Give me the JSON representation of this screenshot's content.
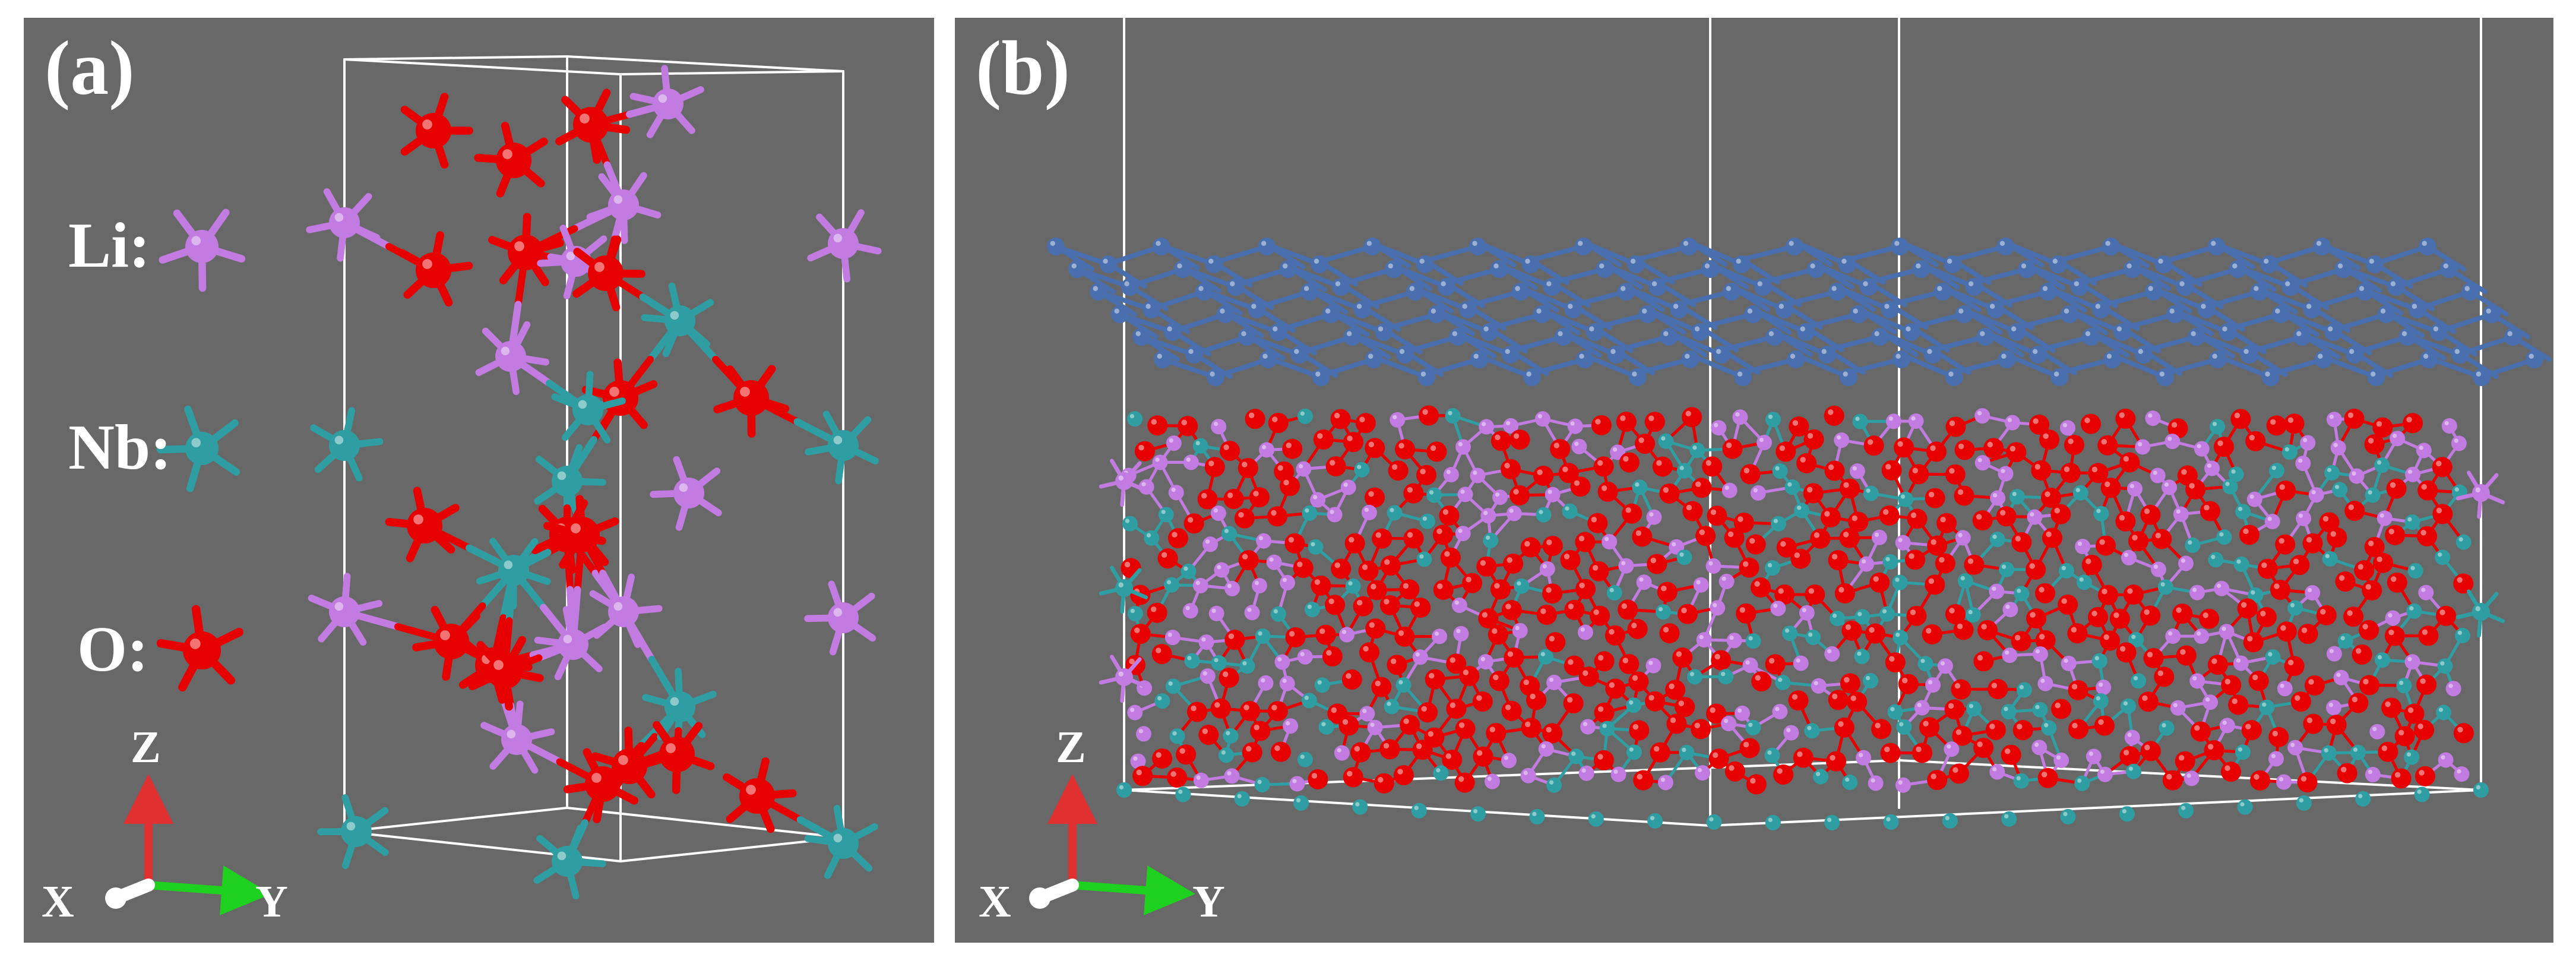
{
  "panel_a": {
    "label": "(a)",
    "legend": [
      {
        "symbol": "Li",
        "text": "Li:",
        "color": "#c27be0"
      },
      {
        "symbol": "Nb",
        "text": "Nb:",
        "color": "#2f9ea3"
      },
      {
        "symbol": "O",
        "text": "O:",
        "color": "#e60000"
      }
    ],
    "axes": {
      "x": "X",
      "y": "Y",
      "z": "Z"
    }
  },
  "panel_b": {
    "label": "(b)",
    "axes": {
      "x": "X",
      "y": "Y",
      "z": "Z"
    }
  },
  "colors": {
    "background": "#686868",
    "li": "#c27be0",
    "nb": "#2f9ea3",
    "o": "#e60000",
    "top_layer": "#4a6fae",
    "cell": "#ffffff",
    "axis_x": "#ffffff",
    "axis_y": "#1fd11f",
    "axis_z": "#e03030"
  }
}
